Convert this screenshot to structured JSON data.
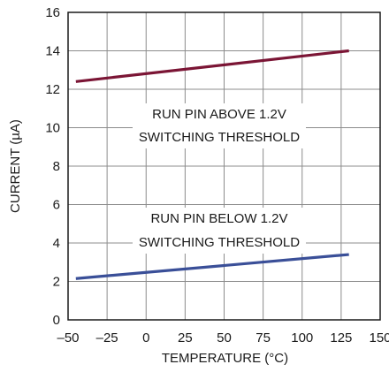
{
  "chart_data": {
    "type": "line",
    "xlabel": "TEMPERATURE (°C)",
    "ylabel": "CURRENT (µA)",
    "xlim": [
      -50,
      150
    ],
    "ylim": [
      0,
      16
    ],
    "x_ticks": [
      "–50",
      "–25",
      "0",
      "25",
      "50",
      "75",
      "100",
      "125",
      "150"
    ],
    "y_ticks": [
      "0",
      "2",
      "4",
      "6",
      "8",
      "10",
      "12",
      "14",
      "16"
    ],
    "grid": true,
    "series": [
      {
        "name": "RUN PIN ABOVE 1.2V SWITCHING THRESHOLD",
        "color": "#7b1535",
        "x": [
          -45,
          130
        ],
        "y": [
          12.4,
          14.0
        ]
      },
      {
        "name": "RUN PIN BELOW 1.2V SWITCHING THRESHOLD",
        "color": "#3a4f98",
        "x": [
          -45,
          130
        ],
        "y": [
          2.15,
          3.4
        ]
      }
    ],
    "annotations": [
      {
        "lines": [
          "RUN PIN ABOVE 1.2V",
          "SWITCHING THRESHOLD"
        ]
      },
      {
        "lines": [
          "RUN PIN BELOW 1.2V",
          "SWITCHING THRESHOLD"
        ]
      }
    ]
  }
}
